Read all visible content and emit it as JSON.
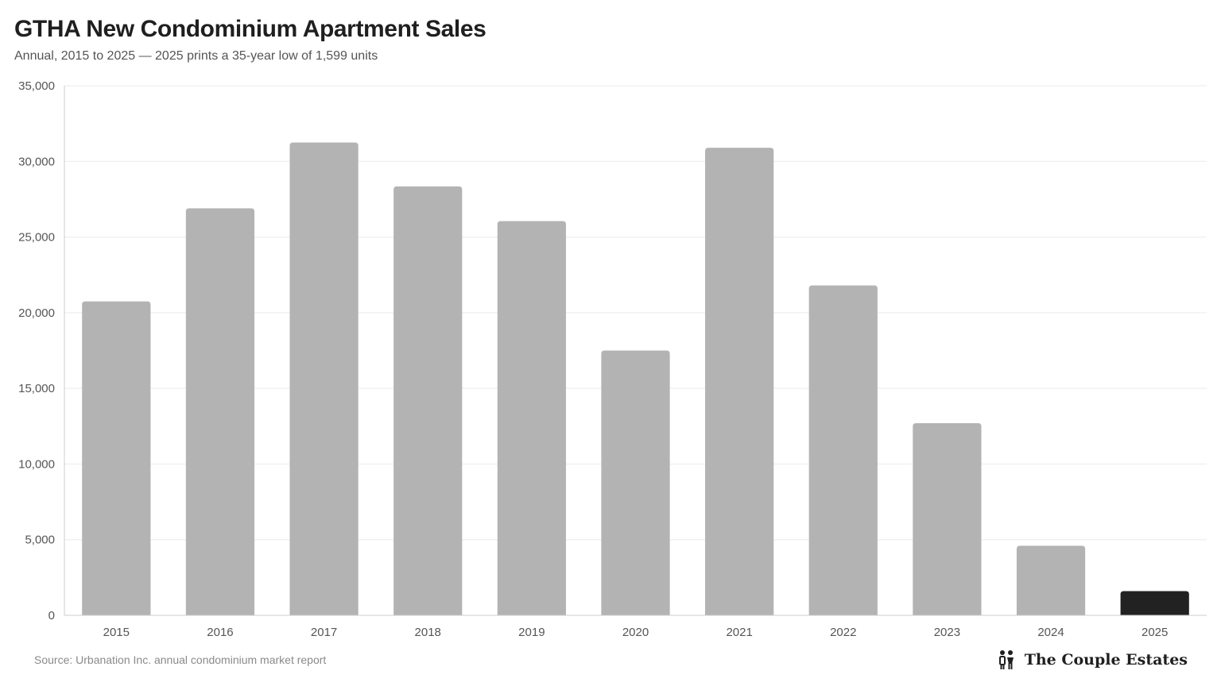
{
  "header": {
    "title": "GTHA New Condominium Apartment Sales",
    "subtitle": "Annual, 2015 to 2025 — 2025 prints a 35-year low of 1,599 units"
  },
  "footer": {
    "source": "Source: Urbanation Inc. annual condominium market report",
    "brand_name": "The Couple Estates",
    "brand_icon": "couple-icon"
  },
  "colors": {
    "bar": "#b3b3b3",
    "highlight_bar": "#222222",
    "gridline": "#ebebeb",
    "axis": "#cccccc",
    "tick_label": "#555555"
  },
  "chart_data": {
    "type": "bar",
    "title": "GTHA New Condominium Apartment Sales",
    "subtitle": "Annual, 2015 to 2025 — 2025 prints a 35-year low of 1,599 units",
    "xlabel": "",
    "ylabel": "",
    "categories": [
      "2015",
      "2016",
      "2017",
      "2018",
      "2019",
      "2020",
      "2021",
      "2022",
      "2023",
      "2024",
      "2025"
    ],
    "values": [
      20750,
      26900,
      31250,
      28350,
      26050,
      17500,
      30900,
      21800,
      12700,
      4600,
      1599
    ],
    "highlight_index": 10,
    "ylim": [
      0,
      35000
    ],
    "yticks": [
      0,
      5000,
      10000,
      15000,
      20000,
      25000,
      30000,
      35000
    ],
    "ytick_labels": [
      "0",
      "5,000",
      "10,000",
      "15,000",
      "20,000",
      "25,000",
      "30,000",
      "35,000"
    ],
    "grid": true,
    "legend": "none"
  }
}
